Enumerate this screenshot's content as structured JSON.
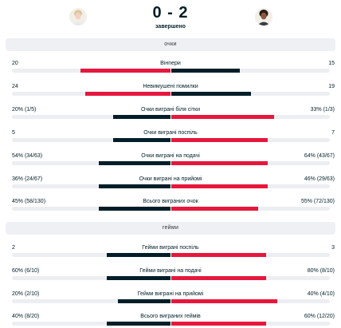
{
  "match": {
    "score": "0 - 2",
    "status": "завершено"
  },
  "colors": {
    "win": "#e6173d",
    "lose": "#001e28",
    "track": "#eceef2"
  },
  "sections": [
    {
      "title": "очки",
      "rows": [
        {
          "label": "Вінneри",
          "home": "20",
          "away": "15",
          "home_frac": 0.57,
          "away_frac": 0.43,
          "winner": "home"
        },
        {
          "label": "Невимушені помилки",
          "home": "24",
          "away": "19",
          "home_frac": 0.54,
          "away_frac": 0.5,
          "winner": "home"
        },
        {
          "label": "Очки виграні біля сітки",
          "home": "20% (1/5)",
          "away": "33% (1/3)",
          "home_frac": 0.36,
          "away_frac": 0.65,
          "winner": "away"
        },
        {
          "label": "Очки виграні поспіль",
          "home": "5",
          "away": "7",
          "home_frac": 0.36,
          "away_frac": 0.61,
          "winner": "away"
        },
        {
          "label": "Очки виграні на подачі",
          "home": "54% (34/63)",
          "away": "64% (43/67)",
          "home_frac": 0.45,
          "away_frac": 0.61,
          "winner": "away"
        },
        {
          "label": "Очки виграні на прийомі",
          "home": "36% (24/67)",
          "away": "46% (29/63)",
          "home_frac": 0.45,
          "away_frac": 0.61,
          "winner": "away"
        },
        {
          "label": "Всього виграних очок",
          "home": "45% (58/130)",
          "away": "55% (72/130)",
          "home_frac": 0.45,
          "away_frac": 0.55,
          "winner": "away"
        }
      ]
    },
    {
      "title": "гейми",
      "rows": [
        {
          "label": "Гейми виграні поспіль",
          "home": "2",
          "away": "3",
          "home_frac": 0.4,
          "away_frac": 0.6,
          "winner": "away"
        },
        {
          "label": "Гейми виграні на подачі",
          "home": "60% (6/10)",
          "away": "80% (8/10)",
          "home_frac": 0.4,
          "away_frac": 0.6,
          "winner": "away"
        },
        {
          "label": "Гейми виграні на прийомі",
          "home": "20% (2/10)",
          "away": "40% (4/10)",
          "home_frac": 0.33,
          "away_frac": 0.67,
          "winner": "away"
        },
        {
          "label": "Всього виграних геймів",
          "home": "40% (8/20)",
          "away": "60% (12/20)",
          "home_frac": 0.4,
          "away_frac": 0.6,
          "winner": "away"
        }
      ]
    }
  ]
}
